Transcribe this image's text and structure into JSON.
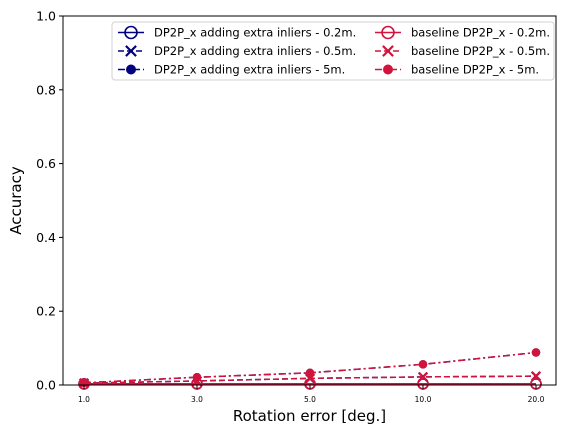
{
  "chart_data": {
    "type": "line",
    "xlabel": "Rotation error [deg.]",
    "ylabel": "Accuracy",
    "categories": [
      "1.0",
      "3.0",
      "5.0",
      "10.0",
      "20.0"
    ],
    "x": [
      1.0,
      3.0,
      5.0,
      10.0,
      20.0
    ],
    "ylim": [
      0.0,
      1.0
    ],
    "yticks": [
      "0.0",
      "0.2",
      "0.4",
      "0.6",
      "0.8",
      "1.0"
    ],
    "ytick_values": [
      0.0,
      0.2,
      0.4,
      0.6,
      0.8,
      1.0
    ],
    "grid": false,
    "legend_position": "top-right",
    "series": [
      {
        "name": "DP2P_x adding extra inliers - 0.2m.",
        "color": "#000080",
        "marker": "open-circle",
        "linestyle": "solid",
        "values": [
          0.003,
          0.003,
          0.003,
          0.003,
          0.003
        ]
      },
      {
        "name": "DP2P_x adding extra inliers - 0.5m.",
        "color": "#000080",
        "marker": "x",
        "linestyle": "dashed",
        "values": [
          0.005,
          0.011,
          0.018,
          0.022,
          0.024
        ]
      },
      {
        "name": "DP2P_x adding extra inliers - 5m.",
        "color": "#000080",
        "marker": "filled-circle",
        "linestyle": "dashdot",
        "values": [
          0.006,
          0.021,
          0.033,
          0.056,
          0.088
        ]
      },
      {
        "name": "baseline DP2P_x - 0.2m.",
        "color": "#d2143c",
        "marker": "open-circle",
        "linestyle": "solid",
        "values": [
          0.003,
          0.003,
          0.003,
          0.003,
          0.003
        ]
      },
      {
        "name": "baseline DP2P_x - 0.5m.",
        "color": "#d2143c",
        "marker": "x",
        "linestyle": "dashed",
        "values": [
          0.005,
          0.011,
          0.018,
          0.022,
          0.024
        ]
      },
      {
        "name": "baseline DP2P_x - 5m.",
        "color": "#d2143c",
        "marker": "filled-circle",
        "linestyle": "dashdot",
        "values": [
          0.006,
          0.021,
          0.033,
          0.056,
          0.088
        ]
      }
    ]
  }
}
